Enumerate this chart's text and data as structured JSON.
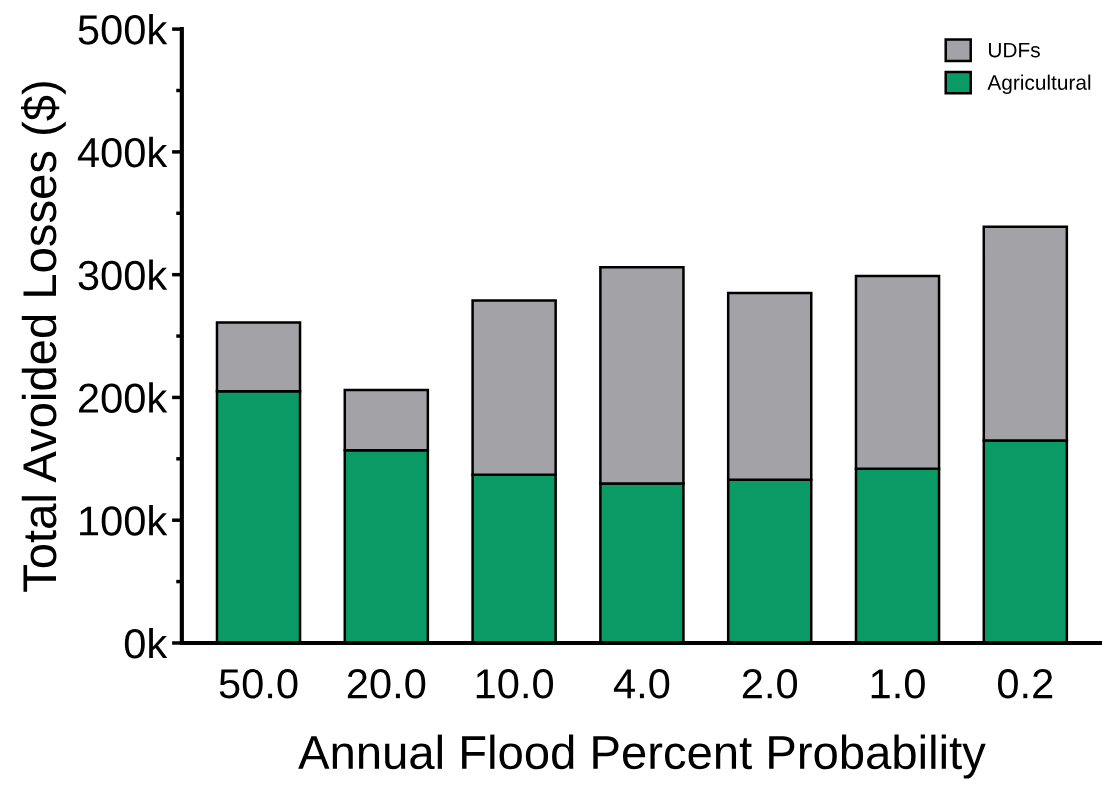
{
  "chart_data": {
    "type": "bar",
    "stacked": true,
    "xlabel": "Annual Flood Percent Probability",
    "ylabel": "Total Avoided Losses ($)",
    "categories": [
      "50.0",
      "20.0",
      "10.0",
      "4.0",
      "2.0",
      "1.0",
      "0.2"
    ],
    "series": [
      {
        "name": "Agricultural",
        "color": "#0a9a66",
        "values": [
          205000,
          157000,
          137000,
          130000,
          133000,
          142000,
          165000
        ]
      },
      {
        "name": "UDFs",
        "color": "#a3a2a7",
        "values": [
          56000,
          49000,
          142000,
          176000,
          152000,
          157000,
          174000
        ]
      }
    ],
    "ylim": [
      0,
      500000
    ],
    "yticks": [
      {
        "value": 0,
        "label": "0k"
      },
      {
        "value": 50000,
        "label": null
      },
      {
        "value": 100000,
        "label": "100k"
      },
      {
        "value": 150000,
        "label": null
      },
      {
        "value": 200000,
        "label": "200k"
      },
      {
        "value": 250000,
        "label": null
      },
      {
        "value": 300000,
        "label": "300k"
      },
      {
        "value": 350000,
        "label": null
      },
      {
        "value": 400000,
        "label": "400k"
      },
      {
        "value": 450000,
        "label": null
      },
      {
        "value": 500000,
        "label": "500k"
      }
    ],
    "grid": false,
    "legend": "top right"
  }
}
